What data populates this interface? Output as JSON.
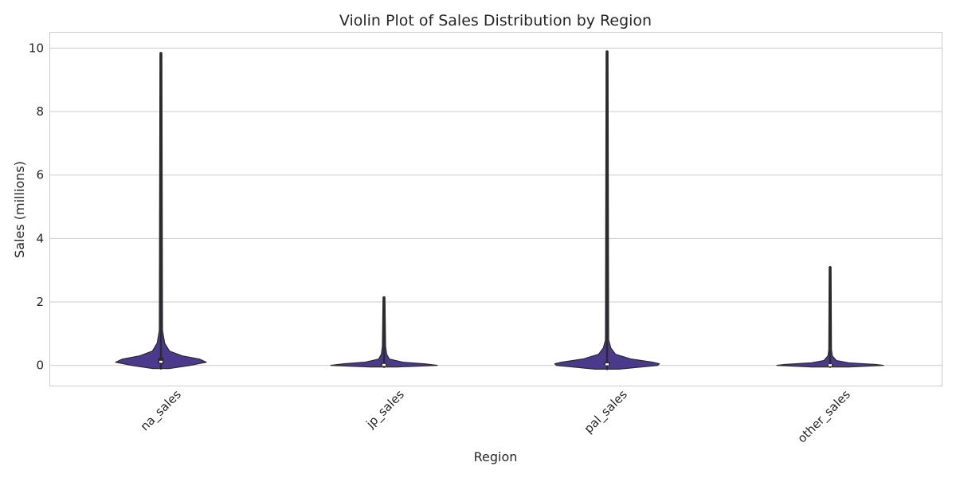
{
  "chart_data": {
    "type": "violin",
    "title": "Violin Plot of Sales Distribution by Region",
    "xlabel": "Region",
    "ylabel": "Sales (millions)",
    "categories": [
      "na_sales",
      "jp_sales",
      "pal_sales",
      "other_sales"
    ],
    "ylim": [
      -0.65,
      10.5
    ],
    "yticks": [
      0,
      2,
      4,
      6,
      8,
      10
    ],
    "grid": true,
    "colors": {
      "fill": "#4b3a8c",
      "edge": "#2b2b2b",
      "grid": "#cccccc",
      "frame": "#cccccc"
    },
    "series": [
      {
        "category": "na_sales",
        "min": -0.1,
        "max": 9.85,
        "q1": 0.05,
        "median": 0.12,
        "q3": 0.24,
        "profile": [
          [
            -0.1,
            0.15
          ],
          [
            0.0,
            0.55
          ],
          [
            0.1,
            0.85
          ],
          [
            0.2,
            0.72
          ],
          [
            0.3,
            0.4
          ],
          [
            0.45,
            0.16
          ],
          [
            0.7,
            0.07
          ],
          [
            1.1,
            0.03
          ]
        ]
      },
      {
        "category": "jp_sales",
        "min": -0.05,
        "max": 2.15,
        "q1": 0.0,
        "median": 0.02,
        "q3": 0.06,
        "profile": [
          [
            -0.05,
            0.25
          ],
          [
            0.0,
            1.0
          ],
          [
            0.05,
            0.75
          ],
          [
            0.1,
            0.35
          ],
          [
            0.2,
            0.1
          ],
          [
            0.35,
            0.05
          ],
          [
            0.6,
            0.03
          ]
        ]
      },
      {
        "category": "pal_sales",
        "min": -0.12,
        "max": 9.9,
        "q1": 0.01,
        "median": 0.04,
        "q3": 0.1,
        "profile": [
          [
            -0.12,
            0.22
          ],
          [
            0.0,
            0.95
          ],
          [
            0.05,
            0.98
          ],
          [
            0.1,
            0.85
          ],
          [
            0.2,
            0.45
          ],
          [
            0.35,
            0.16
          ],
          [
            0.55,
            0.07
          ],
          [
            0.8,
            0.03
          ]
        ]
      },
      {
        "category": "other_sales",
        "min": -0.05,
        "max": 3.1,
        "q1": 0.0,
        "median": 0.01,
        "q3": 0.03,
        "profile": [
          [
            -0.05,
            0.35
          ],
          [
            0.0,
            1.0
          ],
          [
            0.03,
            0.85
          ],
          [
            0.08,
            0.35
          ],
          [
            0.15,
            0.12
          ],
          [
            0.3,
            0.04
          ],
          [
            0.5,
            0.025
          ]
        ]
      }
    ]
  }
}
